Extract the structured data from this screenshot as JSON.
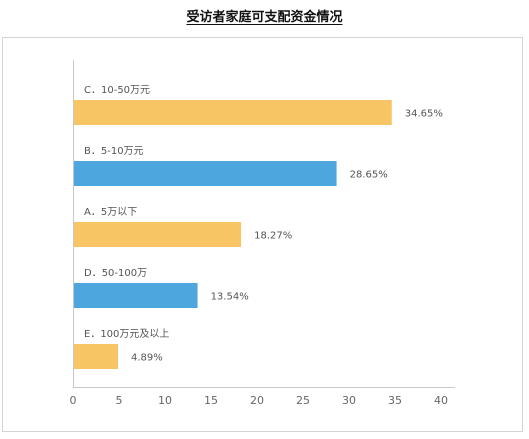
{
  "chart_data": {
    "type": "bar",
    "orientation": "horizontal",
    "title": "受访者家庭可支配资金情况",
    "categories": [
      "C．10-50万元",
      "B．5-10万元",
      "A．5万以下",
      "D．50-100万",
      "E．100万元及以上"
    ],
    "values": [
      34.65,
      28.65,
      18.27,
      13.54,
      4.89
    ],
    "value_labels": [
      "34.65%",
      "28.65%",
      "18.27%",
      "13.54%",
      "4.89%"
    ],
    "bar_colors": [
      "#f7c563",
      "#4ea6de",
      "#f7c563",
      "#4ea6de",
      "#f7c563"
    ],
    "xlim": [
      0,
      40
    ],
    "xticks": [
      0,
      5,
      10,
      15,
      20,
      25,
      30,
      35,
      40
    ],
    "xlabel": "",
    "ylabel": "",
    "grid": false
  }
}
